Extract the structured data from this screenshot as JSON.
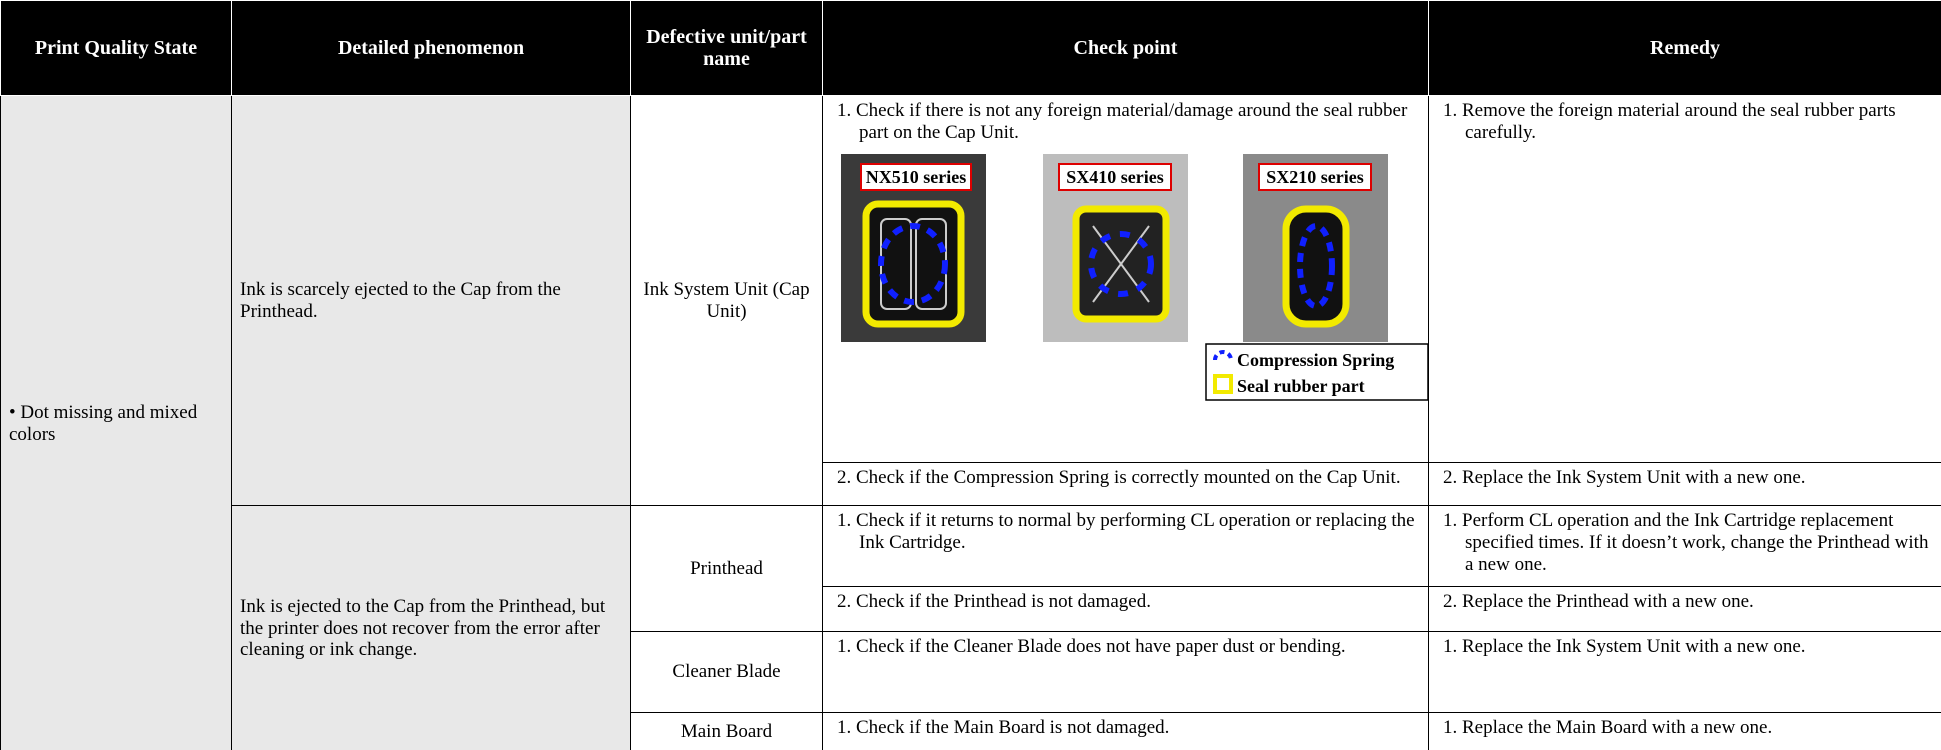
{
  "table": {
    "headers": [
      "Print Quality State",
      "Detailed phenomenon",
      "Defective unit/part name",
      "Check point",
      "Remedy"
    ],
    "state": "• Dot missing and mixed colors",
    "phenomena": [
      {
        "text": "Ink is scarcely ejected to the Cap from the Printhead.",
        "parts": [
          {
            "name": "Ink System Unit (Cap Unit)",
            "checks": [
              {
                "check": "1. Check if there is not any foreign material/damage around the seal rubber part on the Cap Unit.",
                "remedy": "1. Remove the foreign material around the seal rubber parts carefully."
              },
              {
                "check": "2. Check if the Compression Spring is correctly mounted on the Cap Unit.",
                "remedy": "2. Replace the Ink System Unit with a new one."
              }
            ]
          }
        ]
      },
      {
        "text": "Ink is ejected to the Cap from the Printhead, but the printer does not recover from the error after cleaning or ink change.",
        "parts": [
          {
            "name": "Printhead",
            "checks": [
              {
                "check": "1. Check if it returns to normal by performing CL operation or replacing the Ink Cartridge.",
                "remedy": "1. Perform CL operation and the Ink Cartridge replacement specified times. If it doesn’t work, change the Printhead with a new one."
              },
              {
                "check": "2. Check if the Printhead is not damaged.",
                "remedy": "2. Replace the Printhead with a new one."
              }
            ]
          },
          {
            "name": "Cleaner Blade",
            "checks": [
              {
                "check": "1. Check if the Cleaner Blade does not have paper dust or bending.",
                "remedy": "1. Replace the Ink System Unit with a new one."
              }
            ]
          },
          {
            "name": "Main Board",
            "checks": [
              {
                "check": "1. Check if the Main Board is not damaged.",
                "remedy": "1. Replace the Main Board with a new one."
              }
            ]
          }
        ]
      }
    ],
    "figure": {
      "labels": [
        "NX510 series",
        "SX410 series",
        "SX210 series"
      ],
      "legend": [
        "Compression Spring",
        "Seal rubber part"
      ]
    }
  }
}
